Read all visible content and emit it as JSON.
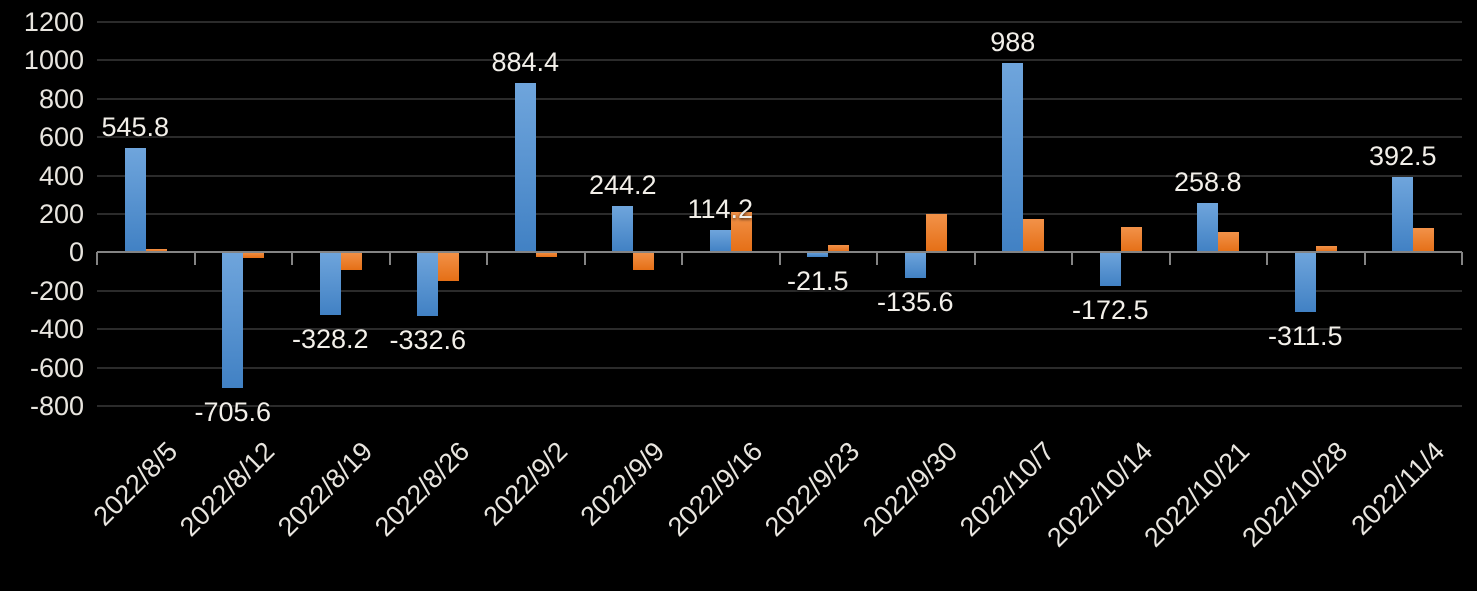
{
  "chart_data": {
    "type": "bar",
    "title": "",
    "legend": "none",
    "categories": [
      "2022/8/5",
      "2022/8/12",
      "2022/8/19",
      "2022/8/26",
      "2022/9/2",
      "2022/9/9",
      "2022/9/16",
      "2022/9/23",
      "2022/9/30",
      "2022/10/7",
      "2022/10/14",
      "2022/10/21",
      "2022/10/28",
      "2022/11/4"
    ],
    "series": [
      {
        "name": "blue-series",
        "values": [
          545.8,
          -705.6,
          -328.2,
          -332.6,
          884.4,
          244.2,
          114.2,
          -21.5,
          -135.6,
          988,
          -172.5,
          258.8,
          -311.5,
          392.5
        ],
        "data_labels": [
          "545.8",
          "-705.6",
          "-328.2",
          "-332.6",
          "884.4",
          "244.2",
          "114.2",
          "-21.5",
          "-135.6",
          "988",
          "-172.5",
          "258.8",
          "-311.5",
          "392.5"
        ],
        "color_top": "#6fa5dc",
        "color_bottom": "#4181c4"
      },
      {
        "name": "orange-series",
        "values": [
          20,
          -30,
          -90,
          -150,
          -25,
          -90,
          210,
          40,
          200,
          175,
          130,
          105,
          35,
          125
        ],
        "data_labels": [],
        "color_top": "#f29249",
        "color_bottom": "#e56f16"
      }
    ],
    "ylim": [
      -800,
      1200
    ],
    "ytick_step": 200,
    "ytick_labels": [
      "1200",
      "1000",
      "800",
      "600",
      "400",
      "200",
      "0",
      "-200",
      "-400",
      "-600",
      "-800"
    ],
    "grid": true,
    "colors": {
      "background": "#000000",
      "axis_line": "#848484",
      "gridline": "#2b2b2b",
      "axis_text": "#e8e5df",
      "data_label_text": "#f2efe9"
    }
  }
}
